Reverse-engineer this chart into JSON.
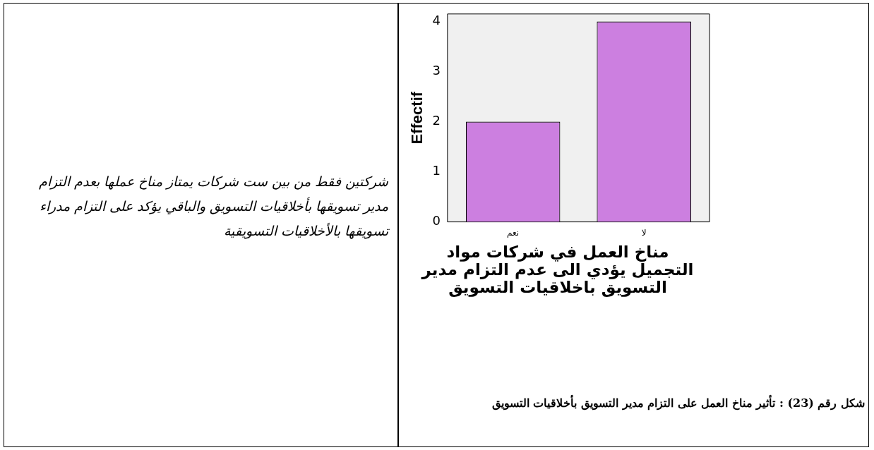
{
  "chart_data": {
    "type": "bar",
    "categories": [
      "نعم",
      "لا"
    ],
    "values": [
      2,
      4
    ],
    "color": "#cc7fe0",
    "ylim": [
      0,
      4.15
    ],
    "yticks": [
      0,
      1,
      2,
      3,
      4
    ],
    "grid": false,
    "legend": false,
    "ylabel": "Effectif",
    "xlabel": "مناخ العمل في شركات مواد التجميل يؤدي الى عدم التزام مدير التسويق باخلاقيات التسويق",
    "annotations": [
      "شركتين فقط من بين ست شركات يمتاز مناخ عملها بعدم التزام مدير تسويقها بأخلاقيات التسويق والباقي يؤكد على التزام مدراء تسويقها بالأخلاقيات التسويقية",
      "شكل رقم (23) : تأثير مناخ العمل على التزام مدير التسويق بأخلاقيات التسويق"
    ]
  }
}
